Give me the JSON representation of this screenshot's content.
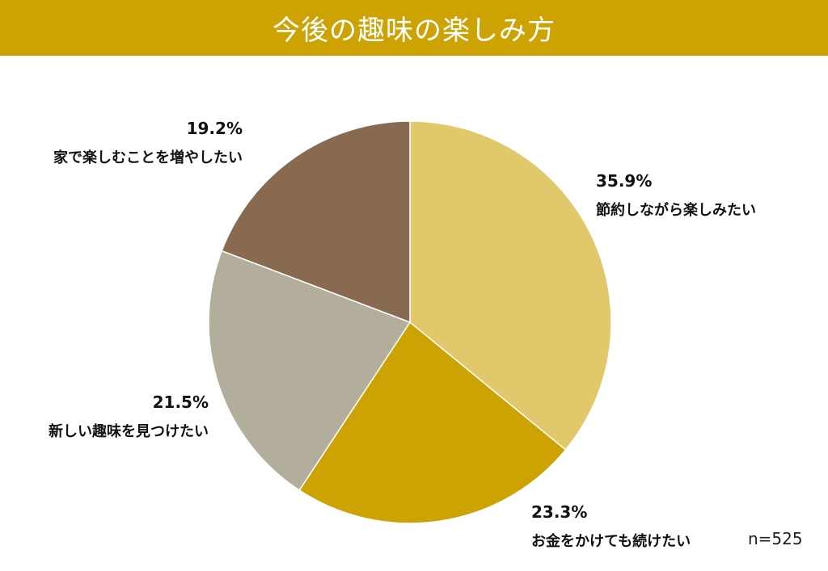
{
  "title": "今後の趣味の楽しみ方",
  "sample_size": "n=525",
  "colors": {
    "title_bar": "#cca302",
    "title_text": "#ffffff",
    "slice_1": "#e0c86b",
    "slice_2": "#cca302",
    "slice_3": "#b3ae9c",
    "slice_4": "#876a50"
  },
  "chart_data": {
    "type": "pie",
    "start": "12 o'clock, clockwise",
    "slices": [
      {
        "label": "節約しながら楽しみたい",
        "value": 35.9,
        "value_text": "35.9%",
        "color": "#e0c86b"
      },
      {
        "label": "お金をかけても続けたい",
        "value": 23.3,
        "value_text": "23.3%",
        "color": "#cca302"
      },
      {
        "label": "新しい趣味を見つけたい",
        "value": 21.5,
        "value_text": "21.5%",
        "color": "#b3ae9c"
      },
      {
        "label": "家で楽しむことを増やしたい",
        "value": 19.2,
        "value_text": "19.2%",
        "color": "#876a50"
      }
    ]
  }
}
